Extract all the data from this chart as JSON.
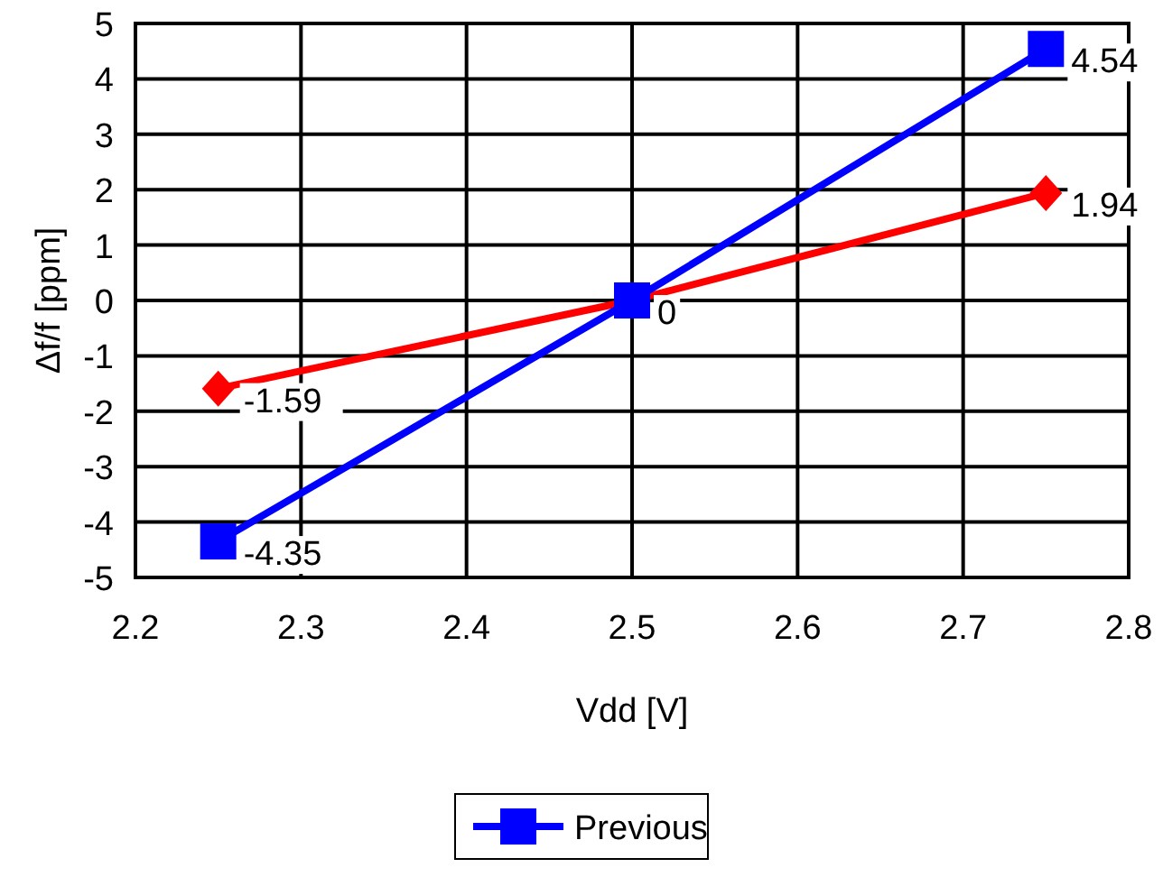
{
  "chart_data": {
    "type": "line",
    "xlabel": "Vdd [V]",
    "ylabel": "Δf/f [ppm]",
    "x": [
      2.25,
      2.5,
      2.75
    ],
    "series": [
      {
        "color": "#ff0000",
        "values": [
          -1.59,
          0,
          1.94
        ],
        "marker": "diamond",
        "value_labels": [
          "-1.59",
          null,
          "1.94"
        ]
      },
      {
        "name": "Previous",
        "color": "#0000ff",
        "values": [
          -4.35,
          0,
          4.54
        ],
        "marker": "square",
        "value_labels": [
          "-4.35",
          "0",
          "4.54"
        ]
      }
    ],
    "xlim": [
      2.2,
      2.8
    ],
    "xticks": [
      2.2,
      2.3,
      2.4,
      2.5,
      2.6,
      2.7,
      2.8
    ],
    "ylim": [
      -5,
      5
    ],
    "yticks": [
      -5,
      -4,
      -3,
      -2,
      -1,
      0,
      1,
      2,
      3,
      4,
      5
    ],
    "grid": true,
    "legend": "bottom"
  }
}
